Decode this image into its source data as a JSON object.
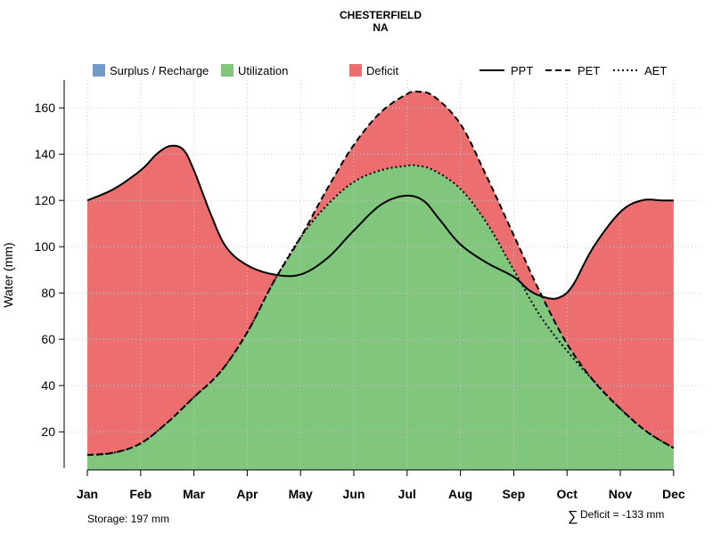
{
  "chart_data": {
    "type": "area",
    "title": "CHESTERFIELD",
    "subtitle": "NA",
    "ylabel": "Water (mm)",
    "xlabel": "",
    "ylim": [
      3,
      172
    ],
    "yticks": [
      20,
      40,
      60,
      80,
      100,
      120,
      140,
      160
    ],
    "months": [
      "Jan",
      "Feb",
      "Mar",
      "Apr",
      "May",
      "Jun",
      "Jul",
      "Aug",
      "Sep",
      "Oct",
      "Nov",
      "Dec"
    ],
    "series": [
      {
        "name": "PPT",
        "style": "solid",
        "x": [
          1,
          1.5,
          2,
          2.3,
          2.55,
          2.8,
          3,
          3.3,
          3.6,
          4,
          4.5,
          5,
          5.5,
          6,
          6.5,
          6.95,
          7.3,
          7.6,
          8,
          8.5,
          9,
          9.3,
          9.6,
          9.85,
          10.1,
          10.5,
          11,
          11.4,
          11.8,
          12.1
        ],
        "values": [
          120,
          125,
          133,
          140,
          143.5,
          142,
          133,
          115,
          100,
          92,
          88,
          88,
          95,
          107,
          118,
          122,
          120,
          112,
          101,
          93,
          87,
          81,
          78,
          78,
          83,
          100,
          115,
          120,
          120,
          120
        ]
      },
      {
        "name": "PET",
        "style": "dashed",
        "x": [
          1,
          1.5,
          2,
          2.5,
          3,
          3.5,
          4,
          4.5,
          5,
          5.5,
          6,
          6.5,
          7,
          7.2,
          7.5,
          8,
          8.5,
          9,
          9.5,
          10,
          10.5,
          11,
          11.5,
          12
        ],
        "values": [
          10,
          11,
          15,
          24,
          35,
          46,
          63,
          85,
          104,
          125,
          144,
          158,
          166,
          167,
          165,
          153,
          130,
          105,
          80,
          58,
          42,
          30,
          20,
          13
        ]
      },
      {
        "name": "AET",
        "style": "dotted",
        "x": [
          1,
          1.5,
          2,
          2.5,
          3,
          3.5,
          4,
          4.5,
          5,
          5.5,
          6,
          6.5,
          7,
          7.2,
          7.5,
          8,
          8.5,
          9,
          9.5,
          10,
          10.5,
          11,
          11.5,
          12
        ],
        "values": [
          10,
          11,
          15,
          24,
          35,
          46,
          63,
          85,
          104,
          118,
          128,
          133,
          135,
          135,
          133,
          125,
          110,
          90,
          70,
          55,
          42,
          30,
          20,
          13
        ]
      }
    ],
    "areas": [
      "Surplus / Recharge",
      "Utilization",
      "Deficit"
    ],
    "colors": {
      "surplus": "#729bc9",
      "utilization": "#80c67c",
      "deficit": "#ec6e6e",
      "grid": "#cccccc"
    },
    "legend": [
      {
        "label": "Surplus / Recharge",
        "kind": "fill",
        "color": "#729bc9"
      },
      {
        "label": "Utilization",
        "kind": "fill",
        "color": "#80c67c"
      },
      {
        "label": "Deficit",
        "kind": "fill",
        "color": "#ec6e6e"
      },
      {
        "label": "PPT",
        "kind": "line",
        "dash": "solid"
      },
      {
        "label": "PET",
        "kind": "line",
        "dash": "dashed"
      },
      {
        "label": "AET",
        "kind": "line",
        "dash": "dotted"
      }
    ],
    "notes": {
      "storage": "Storage: 197 mm",
      "deficit": "Deficit = -133 mm",
      "deficit_symbol": "∑"
    }
  }
}
